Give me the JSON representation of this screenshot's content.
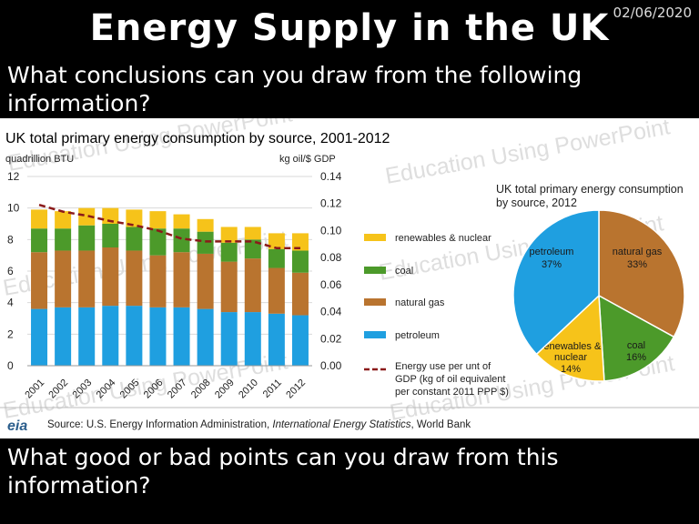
{
  "header": {
    "date": "02/06/2020",
    "title": "Energy Supply in the UK",
    "question1": "What conclusions can you draw from the following information?",
    "question2": "What good or bad points can you draw from this information?"
  },
  "watermark_text": "Education Using PowerPoint",
  "source": {
    "logo": "eia",
    "prefix": "Source:  U.S. Energy Information  Administration, ",
    "publication": "International Energy Statistics",
    "suffix": ", World Bank"
  },
  "colors": {
    "renewables": "#F6C31A",
    "coal": "#4C9A2A",
    "natural_gas": "#B9742F",
    "petroleum": "#1F9FE0",
    "intensity_line": "#8B1A1A"
  },
  "chart_data": [
    {
      "type": "bar",
      "subtype": "stacked",
      "title": "UK total primary energy consumption by source, 2001-2012",
      "ylabel": "quadrillion  BTU",
      "y2label": "kg oil/$ GDP",
      "ylim": [
        0,
        12
      ],
      "y2lim": [
        0,
        0.14
      ],
      "yticks": [
        "0",
        "2",
        "4",
        "6",
        "8",
        "10",
        "12"
      ],
      "y2ticks": [
        "0.00",
        "0.02",
        "0.04",
        "0.06",
        "0.08",
        "0.10",
        "0.12",
        "0.14"
      ],
      "grid": true,
      "legend_position": "right",
      "categories": [
        "2001",
        "2002",
        "2003",
        "2004",
        "2005",
        "2006",
        "2007",
        "2008",
        "2009",
        "2010",
        "2011",
        "2012"
      ],
      "series": [
        {
          "name": "petroleum",
          "values": [
            3.6,
            3.7,
            3.7,
            3.8,
            3.8,
            3.7,
            3.7,
            3.6,
            3.4,
            3.4,
            3.3,
            3.2
          ]
        },
        {
          "name": "natural gas",
          "values": [
            3.6,
            3.6,
            3.6,
            3.7,
            3.5,
            3.3,
            3.5,
            3.5,
            3.2,
            3.4,
            2.9,
            2.7
          ]
        },
        {
          "name": "coal",
          "values": [
            1.5,
            1.4,
            1.6,
            1.5,
            1.5,
            1.7,
            1.5,
            1.4,
            1.2,
            1.2,
            1.2,
            1.4
          ]
        },
        {
          "name": "renewables & nuclear",
          "values": [
            1.2,
            1.1,
            1.1,
            1.0,
            1.1,
            1.1,
            0.9,
            0.8,
            1.0,
            0.8,
            1.0,
            1.1
          ]
        },
        {
          "name": "Energy use per unit of GDP  (kg of oil equivalent per constant 2011 PPP $)",
          "type": "line",
          "axis": "y2",
          "values": [
            0.119,
            0.114,
            0.111,
            0.107,
            0.104,
            0.1,
            0.094,
            0.092,
            0.092,
            0.092,
            0.087,
            0.087
          ]
        }
      ]
    },
    {
      "type": "pie",
      "title": "UK total primary energy consumption by source, 2012",
      "slices": [
        {
          "label": "petroleum",
          "value": 37,
          "display": "37%"
        },
        {
          "label": "natural gas",
          "value": 33,
          "display": "33%"
        },
        {
          "label": "coal",
          "value": 16,
          "display": "16%"
        },
        {
          "label": "renewables & nuclear",
          "value": 14,
          "display": "14%"
        }
      ]
    }
  ]
}
